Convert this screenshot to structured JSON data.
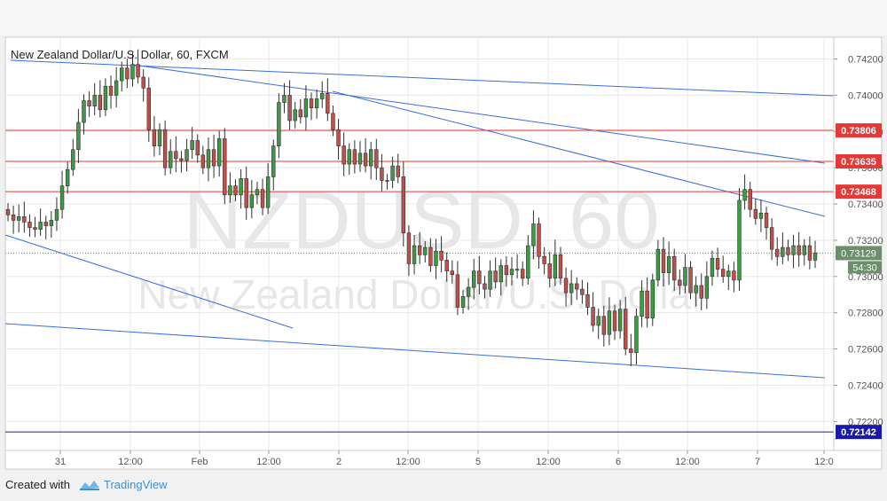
{
  "chart_data": {
    "type": "candlestick",
    "title": "New Zealand Dollar/U.S. Dollar, 60, FXCM",
    "watermark_symbol": "NZDUSD, 60",
    "watermark_name": "New Zealand Dollar/U.S. Dollar",
    "ylim": [
      0.7204,
      0.7432
    ],
    "y_ticks": [
      "0.74200",
      "0.74000",
      "0.73800",
      "0.73600",
      "0.73400",
      "0.73200",
      "0.73000",
      "0.72800",
      "0.72600",
      "0.72400",
      "0.72200"
    ],
    "x_ticks": [
      "31",
      "12:00",
      "Feb",
      "12:00",
      "2",
      "12:00",
      "5",
      "12:00",
      "6",
      "12:00",
      "7",
      "12:0"
    ],
    "horizontal_levels": [
      {
        "value": 0.73806,
        "label": "0.73806",
        "color": "#e53935"
      },
      {
        "value": 0.73635,
        "label": "0.73635",
        "color": "#e53935"
      },
      {
        "value": 0.73468,
        "label": "0.73468",
        "color": "#e53935"
      },
      {
        "value": 0.72142,
        "label": "0.72142",
        "color": "#1a1aa8"
      }
    ],
    "last_price": {
      "value": 0.73129,
      "label": "0.73129",
      "countdown": "54:30"
    },
    "candle_closes": [
      0.7334,
      0.7331,
      0.7333,
      0.733,
      0.7327,
      0.7326,
      0.733,
      0.7328,
      0.7331,
      0.7337,
      0.735,
      0.7359,
      0.737,
      0.7385,
      0.7397,
      0.7394,
      0.74,
      0.7392,
      0.7405,
      0.74,
      0.7408,
      0.7415,
      0.7409,
      0.7417,
      0.741,
      0.7404,
      0.7381,
      0.7372,
      0.7381,
      0.736,
      0.7369,
      0.7365,
      0.7364,
      0.737,
      0.7375,
      0.7367,
      0.736,
      0.737,
      0.7361,
      0.7376,
      0.7345,
      0.735,
      0.7345,
      0.7354,
      0.7338,
      0.7345,
      0.7348,
      0.7338,
      0.7355,
      0.7372,
      0.7396,
      0.74,
      0.7386,
      0.7392,
      0.7388,
      0.7398,
      0.7393,
      0.7398,
      0.7401,
      0.739,
      0.7381,
      0.7372,
      0.7362,
      0.737,
      0.7362,
      0.7368,
      0.7361,
      0.737,
      0.736,
      0.7353,
      0.7353,
      0.7361,
      0.7355,
      0.7324,
      0.7307,
      0.7317,
      0.7312,
      0.7316,
      0.7306,
      0.7314,
      0.7309,
      0.7303,
      0.7301,
      0.7283,
      0.7289,
      0.7294,
      0.7303,
      0.7296,
      0.7293,
      0.7303,
      0.7297,
      0.7306,
      0.7301,
      0.7304,
      0.7304,
      0.7299,
      0.7317,
      0.7329,
      0.7311,
      0.7307,
      0.7299,
      0.7312,
      0.7299,
      0.7291,
      0.7296,
      0.7293,
      0.729,
      0.7283,
      0.7273,
      0.7278,
      0.7268,
      0.7281,
      0.727,
      0.7282,
      0.726,
      0.7258,
      0.7278,
      0.7292,
      0.7277,
      0.7298,
      0.7315,
      0.7302,
      0.7311,
      0.7298,
      0.7295,
      0.7305,
      0.7291,
      0.7295,
      0.7288,
      0.73,
      0.731,
      0.7304,
      0.73,
      0.7303,
      0.7298,
      0.7342,
      0.7348,
      0.7337,
      0.7332,
      0.7335,
      0.7327,
      0.7315,
      0.7311,
      0.7316,
      0.7312,
      0.7317,
      0.7312,
      0.7317,
      0.7309,
      0.7313
    ]
  },
  "footer": {
    "created_with": "Created with",
    "brand": "TradingView"
  },
  "colors": {
    "up_fill": "#3f9a46",
    "down_fill": "#c0504d",
    "candle_border": "#2e2e2e",
    "trendline": "#3a6fd8",
    "axis_label_up": "#6b8e6b",
    "tick_text": "#555555",
    "grid": "#e8e8e8"
  }
}
